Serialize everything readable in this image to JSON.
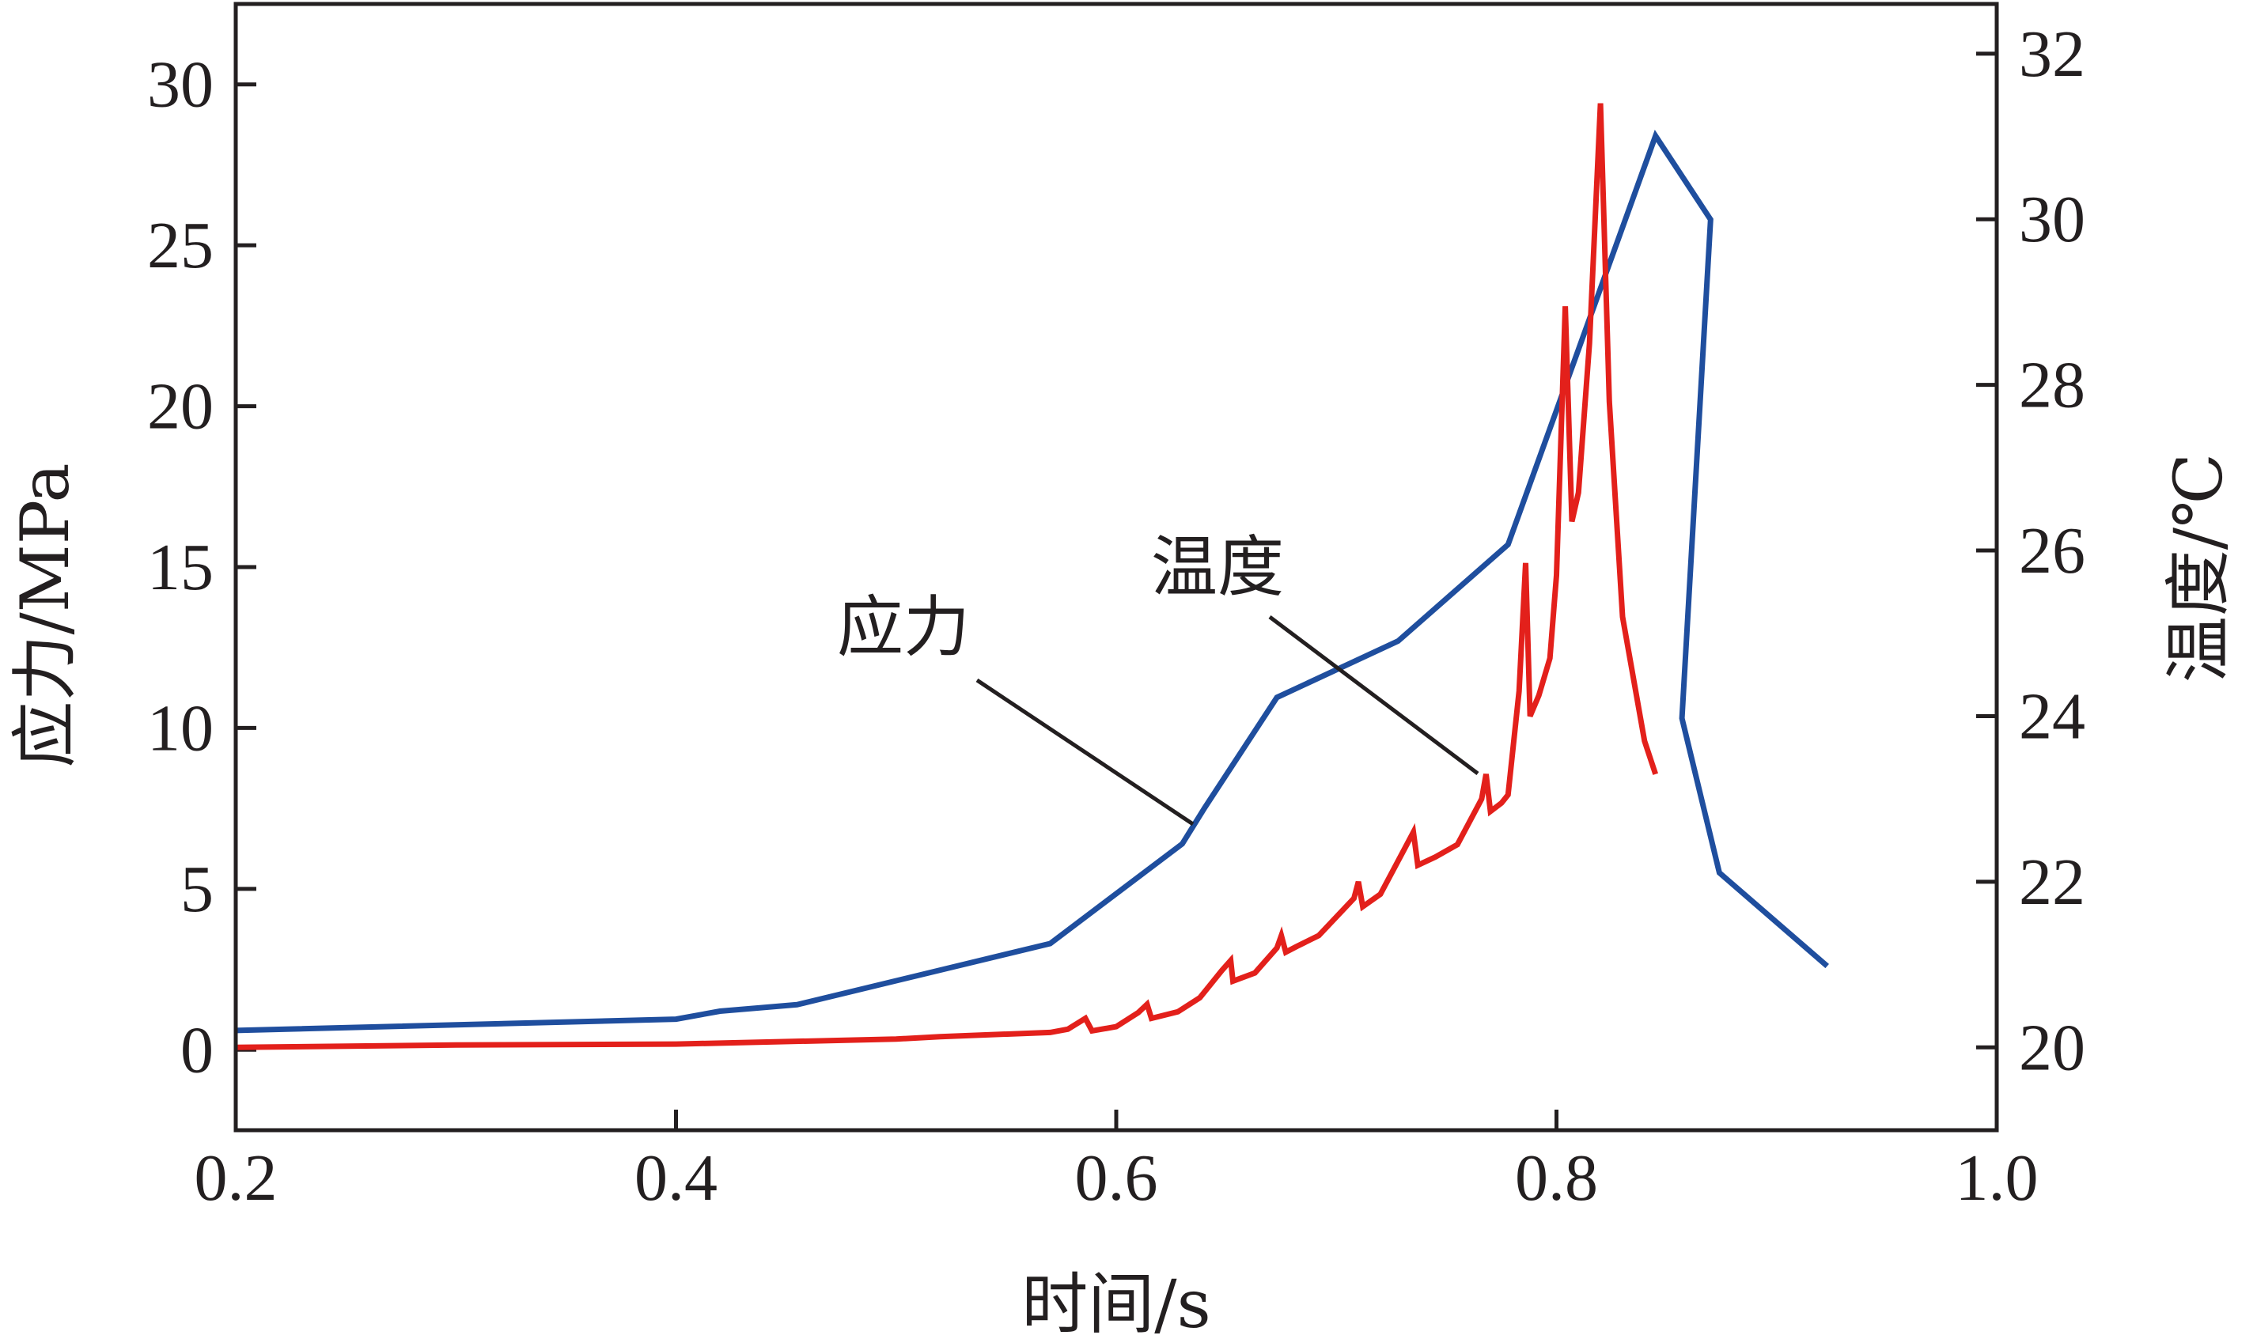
{
  "chart_data": {
    "type": "line",
    "xlabel": "时间/s",
    "ylabel_left": "应力/MPa",
    "ylabel_right": "温度/℃",
    "x_range": [
      0.2,
      1.0
    ],
    "y_left_range": [
      -2.5,
      32.5
    ],
    "y_right_range": [
      19.0,
      32.6
    ],
    "x_ticks": [
      0.2,
      0.4,
      0.6,
      0.8,
      1.0
    ],
    "x_tick_labels": [
      "0.2",
      "0.4",
      "0.6",
      "0.8",
      "1.0"
    ],
    "y_left_ticks": [
      0,
      5,
      10,
      15,
      20,
      25,
      30
    ],
    "y_left_tick_labels": [
      "0",
      "5",
      "10",
      "15",
      "20",
      "25",
      "30"
    ],
    "y_right_ticks": [
      20,
      22,
      24,
      26,
      28,
      30,
      32
    ],
    "y_right_tick_labels": [
      "20",
      "22",
      "24",
      "26",
      "28",
      "30",
      "32"
    ],
    "grid": false,
    "series": [
      {
        "name": "应力",
        "axis": "left",
        "color": "#1f4e9e",
        "points": [
          [
            0.2,
            0.6
          ],
          [
            0.4,
            0.95
          ],
          [
            0.42,
            1.2
          ],
          [
            0.455,
            1.4
          ],
          [
            0.57,
            3.3
          ],
          [
            0.63,
            6.4
          ],
          [
            0.64,
            7.5
          ],
          [
            0.673,
            10.95
          ],
          [
            0.728,
            12.7
          ],
          [
            0.778,
            15.7
          ],
          [
            0.845,
            28.4
          ],
          [
            0.87,
            25.8
          ],
          [
            0.857,
            10.3
          ],
          [
            0.874,
            5.5
          ],
          [
            0.923,
            2.6
          ]
        ]
      },
      {
        "name": "温度",
        "axis": "right",
        "color": "#e3201b",
        "points": [
          [
            0.2,
            20.0
          ],
          [
            0.3,
            20.03
          ],
          [
            0.4,
            20.04
          ],
          [
            0.5,
            20.1
          ],
          [
            0.52,
            20.13
          ],
          [
            0.57,
            20.18
          ],
          [
            0.578,
            20.22
          ],
          [
            0.586,
            20.35
          ],
          [
            0.589,
            20.2
          ],
          [
            0.6,
            20.25
          ],
          [
            0.61,
            20.42
          ],
          [
            0.614,
            20.52
          ],
          [
            0.616,
            20.35
          ],
          [
            0.628,
            20.43
          ],
          [
            0.638,
            20.6
          ],
          [
            0.648,
            20.93
          ],
          [
            0.652,
            21.05
          ],
          [
            0.653,
            20.8
          ],
          [
            0.663,
            20.9
          ],
          [
            0.673,
            21.2
          ],
          [
            0.675,
            21.35
          ],
          [
            0.677,
            21.15
          ],
          [
            0.682,
            21.22
          ],
          [
            0.692,
            21.35
          ],
          [
            0.708,
            21.8
          ],
          [
            0.71,
            22.0
          ],
          [
            0.712,
            21.7
          ],
          [
            0.72,
            21.85
          ],
          [
            0.732,
            22.45
          ],
          [
            0.735,
            22.6
          ],
          [
            0.737,
            22.2
          ],
          [
            0.745,
            22.3
          ],
          [
            0.755,
            22.45
          ],
          [
            0.766,
            23.0
          ],
          [
            0.768,
            23.3
          ],
          [
            0.77,
            22.85
          ],
          [
            0.775,
            22.95
          ],
          [
            0.778,
            23.05
          ],
          [
            0.783,
            24.3
          ],
          [
            0.786,
            25.85
          ],
          [
            0.788,
            24.0
          ],
          [
            0.792,
            24.25
          ],
          [
            0.797,
            24.7
          ],
          [
            0.8,
            25.7
          ],
          [
            0.804,
            28.95
          ],
          [
            0.807,
            26.35
          ],
          [
            0.81,
            26.7
          ],
          [
            0.815,
            28.5
          ],
          [
            0.82,
            31.4
          ],
          [
            0.824,
            27.8
          ],
          [
            0.83,
            25.2
          ],
          [
            0.84,
            23.7
          ],
          [
            0.845,
            23.3
          ]
        ]
      }
    ],
    "annotations": [
      {
        "text": "应力",
        "target_series": "应力"
      },
      {
        "text": "温度",
        "target_series": "温度"
      }
    ]
  }
}
